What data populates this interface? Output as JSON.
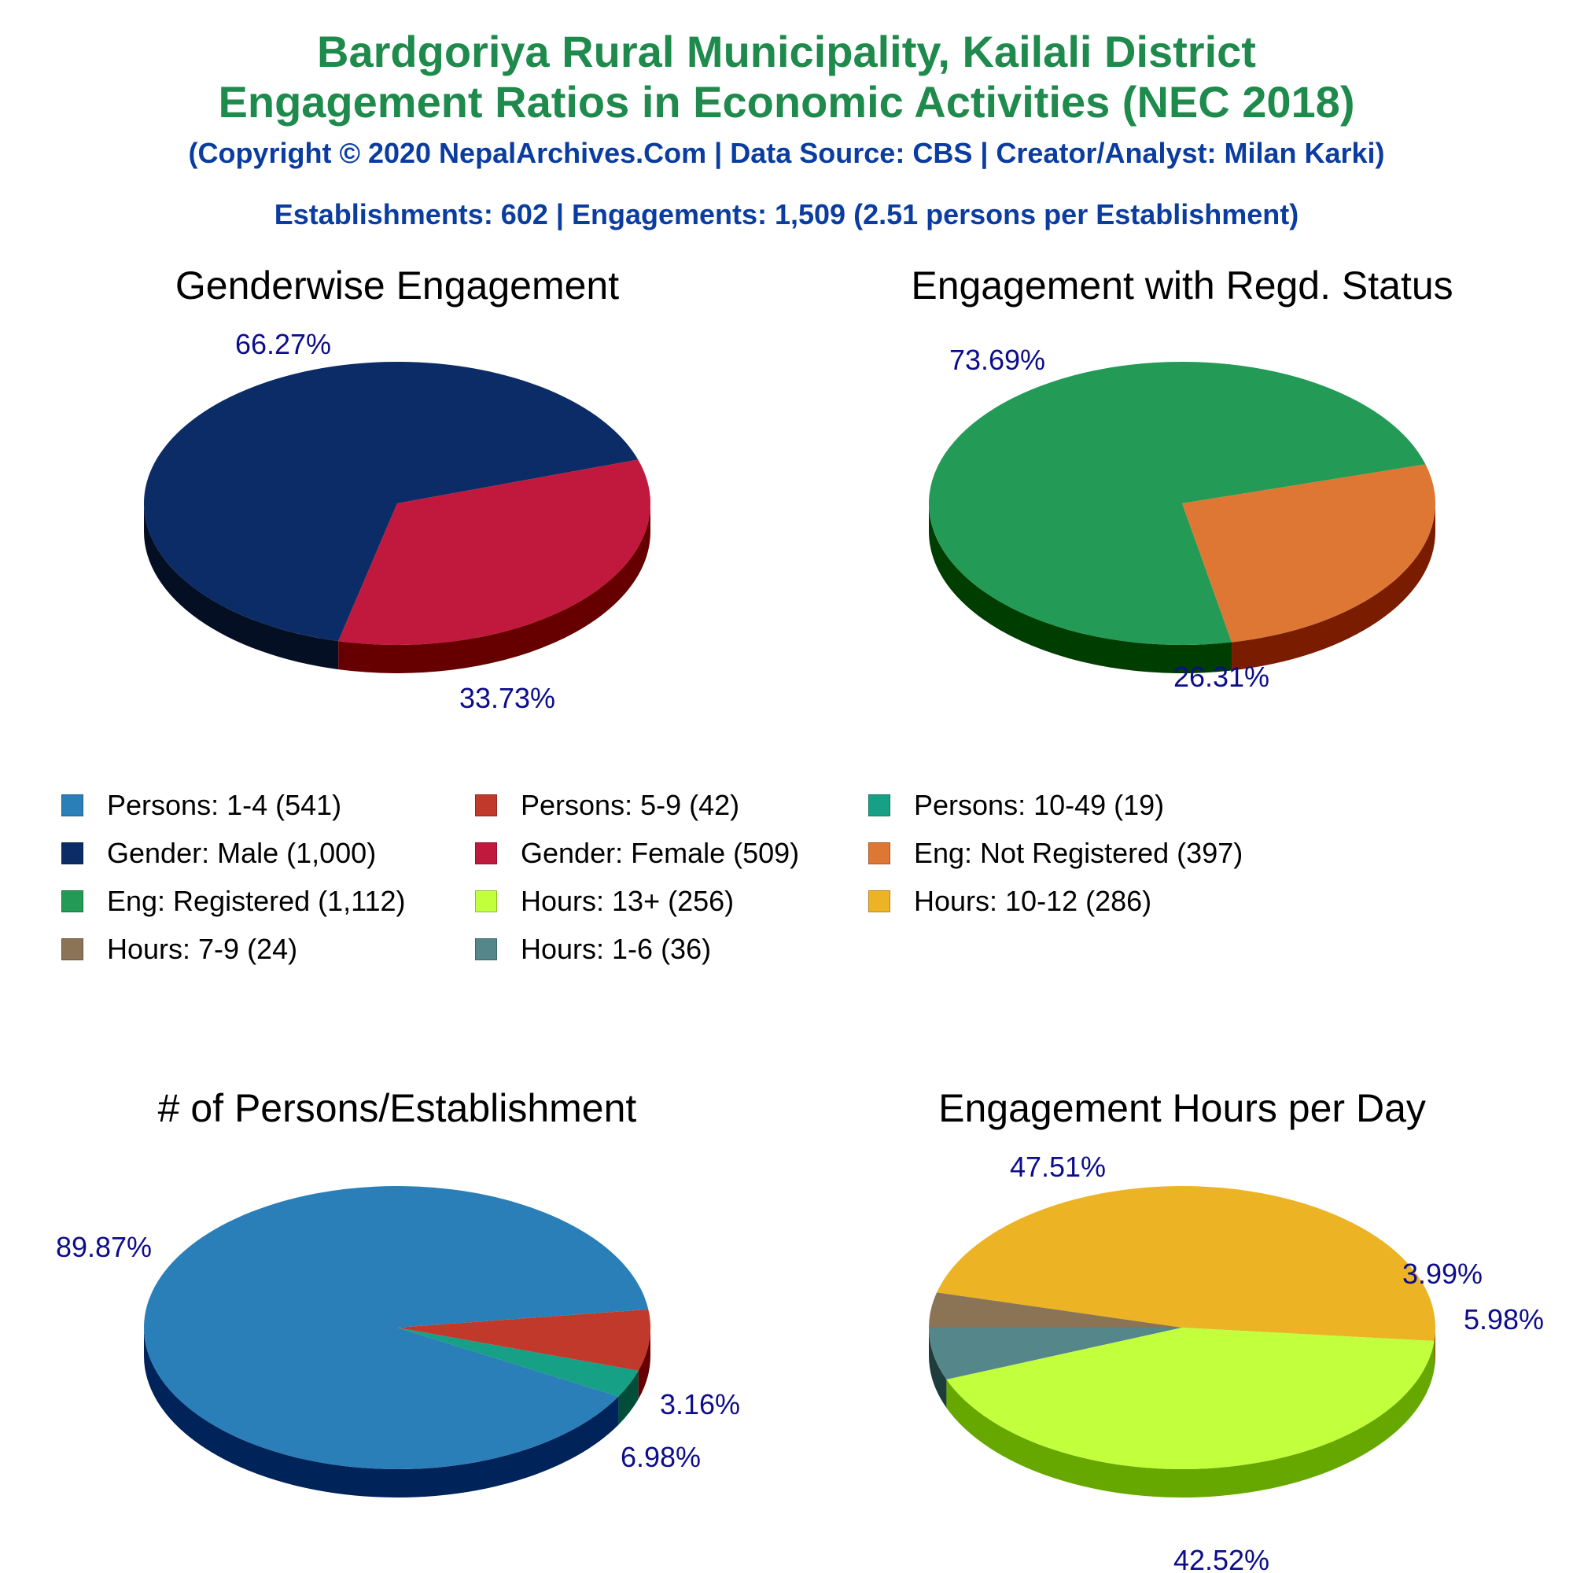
{
  "header": {
    "title_line1": "Bardgoriya Rural Municipality, Kailali District",
    "title_line2": "Engagement Ratios in Economic Activities (NEC 2018)",
    "subtitle": "(Copyright © 2020 NepalArchives.Com | Data Source: CBS | Creator/Analyst: Milan Karki)",
    "summary": "Establishments: 602 | Engagements: 1,509 (2.51 persons per Establishment)"
  },
  "legend": [
    {
      "label": "Persons: 1-4 (541)",
      "color": "#2a7fb8"
    },
    {
      "label": "Persons: 5-9 (42)",
      "color": "#c0392b"
    },
    {
      "label": "Persons: 10-49 (19)",
      "color": "#16a085"
    },
    {
      "label": "Gender: Male (1,000)",
      "color": "#0b2c66"
    },
    {
      "label": "Gender: Female (509)",
      "color": "#c0193d"
    },
    {
      "label": "Eng: Not Registered (397)",
      "color": "#dd7733"
    },
    {
      "label": "Eng: Registered (1,112)",
      "color": "#239a55"
    },
    {
      "label": "Hours: 13+ (256)",
      "color": "#c2ff3d"
    },
    {
      "label": "Hours: 10-12 (286)",
      "color": "#ecb324"
    },
    {
      "label": "Hours: 7-9 (24)",
      "color": "#8b7356"
    },
    {
      "label": "Hours: 1-6 (36)",
      "color": "#55878a"
    }
  ],
  "chart_data": [
    {
      "type": "pie",
      "title": "Genderwise Engagement",
      "slices": [
        {
          "name": "Gender: Male",
          "value": 1000,
          "percent": 66.27,
          "label": "66.27%",
          "color": "#0b2c66",
          "side": "#050f24"
        },
        {
          "name": "Gender: Female",
          "value": 509,
          "percent": 33.73,
          "label": "33.73%",
          "color": "#c0193d",
          "side": "#660000"
        }
      ]
    },
    {
      "type": "pie",
      "title": "Engagement with Regd. Status",
      "slices": [
        {
          "name": "Eng: Registered",
          "value": 1112,
          "percent": 73.69,
          "label": "73.69%",
          "color": "#239a55",
          "side": "#003d00"
        },
        {
          "name": "Eng: Not Registered",
          "value": 397,
          "percent": 26.31,
          "label": "26.31%",
          "color": "#dd7733",
          "side": "#7a1c00"
        }
      ]
    },
    {
      "type": "pie",
      "title": "# of Persons/Establishment",
      "slices": [
        {
          "name": "Persons: 1-4",
          "value": 541,
          "percent": 89.87,
          "label": "89.87%",
          "color": "#2a7fb8",
          "side": "#00235a"
        },
        {
          "name": "Persons: 10-49",
          "value": 19,
          "percent": 3.16,
          "label": "3.16%",
          "color": "#16a085",
          "side": "#004d3a"
        },
        {
          "name": "Persons: 5-9",
          "value": 42,
          "percent": 6.98,
          "label": "6.98%",
          "color": "#c0392b",
          "side": "#660000"
        }
      ]
    },
    {
      "type": "pie",
      "title": "Engagement Hours per Day",
      "slices": [
        {
          "name": "Hours: 10-12",
          "value": 286,
          "percent": 47.51,
          "label": "47.51%",
          "color": "#ecb324",
          "side": "#7a5300"
        },
        {
          "name": "Hours: 7-9",
          "value": 24,
          "percent": 3.99,
          "label": "3.99%",
          "color": "#8b7356",
          "side": "#3d2d18"
        },
        {
          "name": "Hours: 1-6",
          "value": 36,
          "percent": 5.98,
          "label": "5.98%",
          "color": "#55878a",
          "side": "#1f3c3d"
        },
        {
          "name": "Hours: 13+",
          "value": 256,
          "percent": 42.52,
          "label": "42.52%",
          "color": "#c2ff3d",
          "side": "#66a800"
        }
      ]
    }
  ]
}
